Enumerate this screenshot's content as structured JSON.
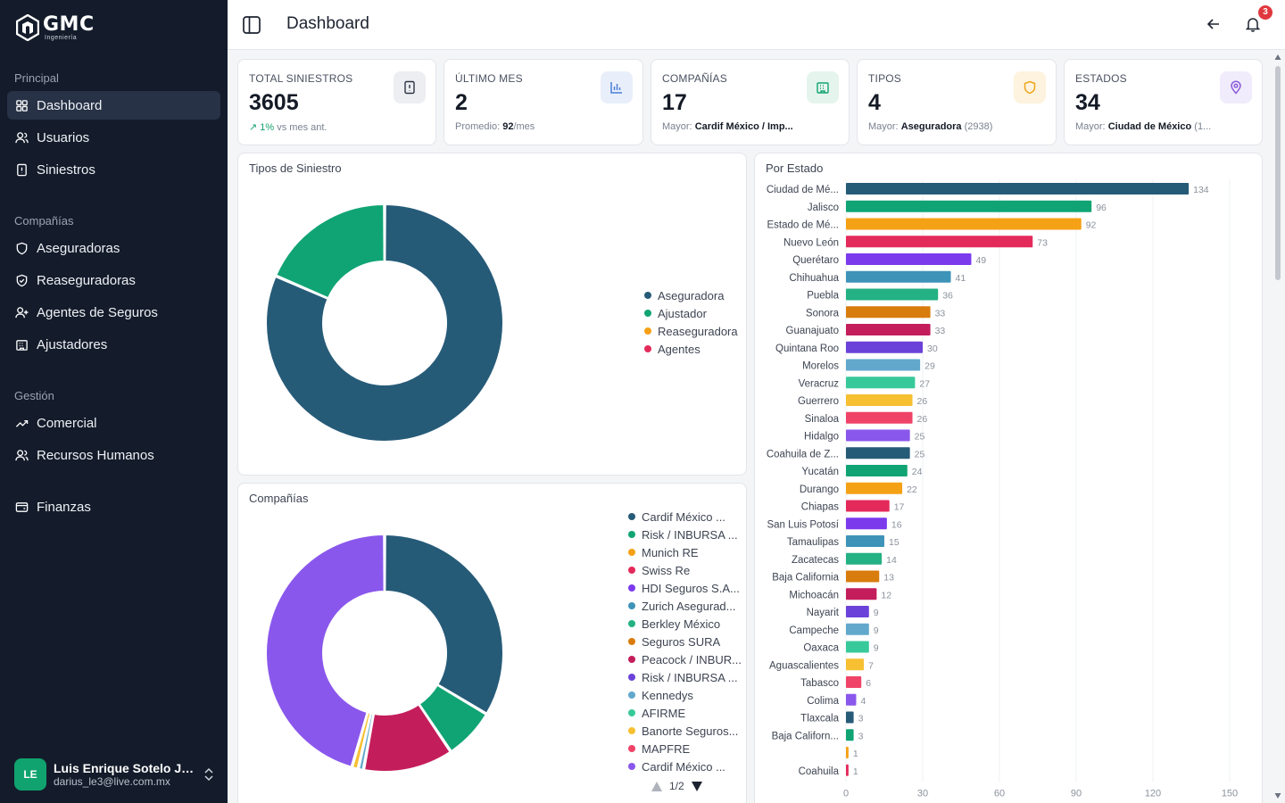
{
  "brand": {
    "name": "GMC",
    "sub": "Ingeniería"
  },
  "sidebar": {
    "sections": [
      {
        "title": "Principal",
        "items": [
          {
            "label": "Dashboard",
            "icon": "grid-icon",
            "active": true
          },
          {
            "label": "Usuarios",
            "icon": "users-icon"
          },
          {
            "label": "Siniestros",
            "icon": "alert-file-icon"
          }
        ]
      },
      {
        "title": "Compañías",
        "items": [
          {
            "label": "Aseguradoras",
            "icon": "shield-icon"
          },
          {
            "label": "Reaseguradoras",
            "icon": "shield-check-icon"
          },
          {
            "label": "Agentes de Seguros",
            "icon": "user-plus-icon"
          },
          {
            "label": "Ajustadores",
            "icon": "building-icon"
          }
        ]
      },
      {
        "title": "Gestión",
        "items": [
          {
            "label": "Comercial",
            "icon": "trending-up-icon"
          },
          {
            "label": "Recursos Humanos",
            "icon": "people-icon"
          }
        ]
      },
      {
        "title": "",
        "items": [
          {
            "label": "Finanzas",
            "icon": "wallet-icon"
          }
        ]
      }
    ],
    "user": {
      "initials": "LE",
      "name": "Luis Enrique Sotelo Ja...",
      "email": "darius_le3@live.com.mx"
    }
  },
  "header": {
    "title": "Dashboard",
    "notifications": "3"
  },
  "stats": [
    {
      "label": "TOTAL SINIESTROS",
      "value": "3605",
      "sub_accent": "↗ 1%",
      "sub_text": " vs mes ant.",
      "icon": "file-alert-icon",
      "icon_bg": "#eceef2",
      "icon_color": "#2c3444"
    },
    {
      "label": "ÚLTIMO MES",
      "value": "2",
      "sub_prefix": "Promedio: ",
      "sub_bold": "92",
      "sub_suffix": "/mes",
      "icon": "bar-chart-icon",
      "icon_bg": "#e9effa",
      "icon_color": "#4a7fd8"
    },
    {
      "label": "COMPAÑÍAS",
      "value": "17",
      "sub_prefix": "Mayor: ",
      "sub_bold": "Cardif México / Imp...",
      "sub_suffix": "",
      "icon": "building-icon",
      "icon_bg": "#e5f5ee",
      "icon_color": "#14a36e"
    },
    {
      "label": "TIPOS",
      "value": "4",
      "sub_prefix": "Mayor: ",
      "sub_bold": "Aseguradora",
      "sub_suffix": " (2938)",
      "icon": "shield-icon",
      "icon_bg": "#fdf3de",
      "icon_color": "#f0a51a"
    },
    {
      "label": "ESTADOS",
      "value": "34",
      "sub_prefix": "Mayor: ",
      "sub_bold": "Ciudad de México",
      "sub_suffix": " (1...",
      "icon": "map-pin-icon",
      "icon_bg": "#f1ecfb",
      "icon_color": "#8a5ad8"
    }
  ],
  "panels": {
    "tipos_title": "Tipos de Siniestro",
    "companias_title": "Compañías",
    "estado_title": "Por Estado",
    "pager": "1/2"
  },
  "chart_data": [
    {
      "type": "pie",
      "title": "Tipos de Siniestro",
      "categories": [
        "Aseguradora",
        "Ajustador",
        "Reaseguradora",
        "Agentes"
      ],
      "values": [
        2938,
        667,
        0,
        0
      ],
      "colors": [
        "#265b78",
        "#10a474",
        "#f5a116",
        "#e42a5b"
      ]
    },
    {
      "type": "pie",
      "title": "Compañías",
      "categories": [
        "Cardif México ...",
        "Risk / INBURSA ...",
        "Munich RE",
        "Swiss Re",
        "HDI Seguros S.A...",
        "Zurich Asegurad...",
        "Berkley México",
        "Seguros SURA",
        "Peacock / INBUR...",
        "Risk / INBURSA ...",
        "Kennedys",
        "AFIRME",
        "Banorte Seguros...",
        "MAPFRE",
        "Cardif México ..."
      ],
      "values": [
        1150,
        240,
        0,
        0,
        0,
        0,
        0,
        0,
        420,
        0,
        25,
        0,
        30,
        0,
        1560
      ],
      "colors": [
        "#265b78",
        "#10a474",
        "#f5a116",
        "#e42a5b",
        "#7c3aed",
        "#3e93b8",
        "#24b183",
        "#d97c0e",
        "#c41d5b",
        "#6b42d9",
        "#62a8cc",
        "#37c99a",
        "#f7c032",
        "#f04368",
        "#8a57ec"
      ]
    },
    {
      "type": "bar",
      "orientation": "horizontal",
      "title": "Por Estado",
      "categories": [
        "Ciudad de Mé...",
        "Jalisco",
        "Estado de Mé...",
        "Nuevo León",
        "Querétaro",
        "Chihuahua",
        "Puebla",
        "Sonora",
        "Guanajuato",
        "Quintana Roo",
        "Morelos",
        "Veracruz",
        "Guerrero",
        "Sinaloa",
        "Hidalgo",
        "Coahuila de Z...",
        "Yucatán",
        "Durango",
        "Chiapas",
        "San Luis Potosí",
        "Tamaulipas",
        "Zacatecas",
        "Baja California",
        "Michoacán",
        "Nayarit",
        "Campeche",
        "Oaxaca",
        "Aguascalientes",
        "Tabasco",
        "Colima",
        "Tlaxcala",
        "Baja Californ...",
        "",
        "Coahuila"
      ],
      "values": [
        134,
        96,
        92,
        73,
        49,
        41,
        36,
        33,
        33,
        30,
        29,
        27,
        26,
        26,
        25,
        25,
        24,
        22,
        17,
        16,
        15,
        14,
        13,
        12,
        9,
        9,
        9,
        7,
        6,
        4,
        3,
        3,
        1,
        1
      ],
      "xlim": [
        0,
        150
      ],
      "xticks": [
        0,
        30,
        60,
        90,
        120,
        150
      ],
      "grid": true,
      "colors": [
        "#265b78",
        "#10a474",
        "#f5a116",
        "#e42a5b",
        "#7c3aed",
        "#3e93b8",
        "#24b183",
        "#d97c0e",
        "#c41d5b",
        "#6b42d9",
        "#62a8cc",
        "#37c99a",
        "#f7c032",
        "#f04368",
        "#8a57ec"
      ]
    }
  ]
}
